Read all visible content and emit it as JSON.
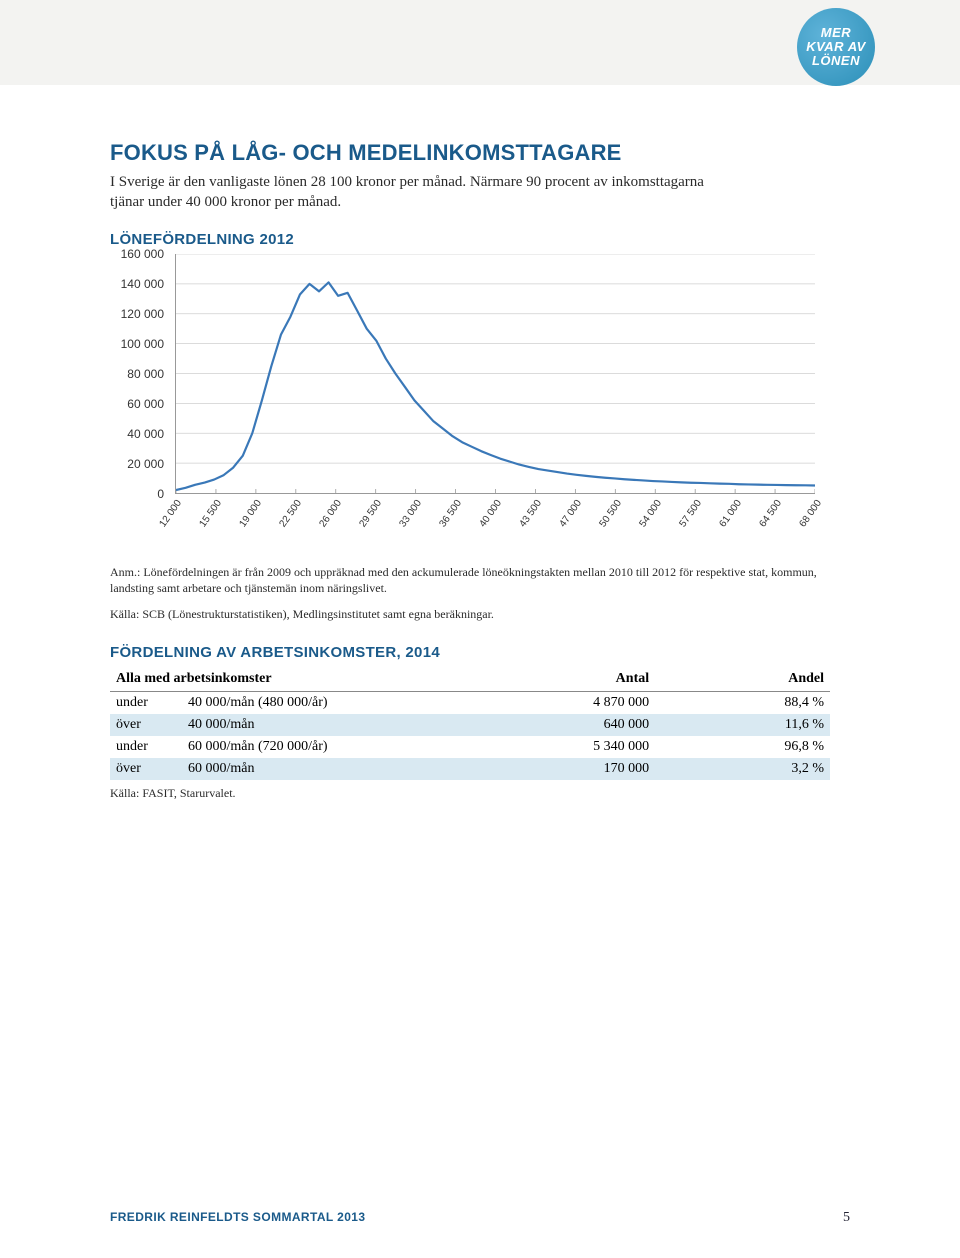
{
  "badge": {
    "line1": "MER",
    "line2": "KVAR AV",
    "line3": "LÖNEN"
  },
  "heading": "FOKUS PÅ LÅG- OCH MEDELINKOMSTTAGARE",
  "intro": "I Sverige är den vanligaste lönen 28 100 kronor per månad. Närmare 90 procent av inkomsttagarna tjänar under 40 000 kronor per månad.",
  "chart": {
    "title": "LÖNEFÖRDELNING 2012",
    "type": "line",
    "y_ticks": [
      0,
      20000,
      40000,
      60000,
      80000,
      100000,
      120000,
      140000,
      160000
    ],
    "y_labels": [
      "0",
      "20 000",
      "40 000",
      "60 000",
      "80 000",
      "100 000",
      "120 000",
      "140 000",
      "160 000"
    ],
    "ylim": [
      0,
      160000
    ],
    "x_labels": [
      "12 000",
      "15 500",
      "19 000",
      "22 500",
      "26 000",
      "29 500",
      "33 000",
      "36 500",
      "40 000",
      "43 500",
      "47 000",
      "50 500",
      "54 000",
      "57 500",
      "61 000",
      "64 500",
      "68 000"
    ],
    "series": {
      "color": "#3a78b8",
      "stroke_width": 2.2,
      "points": [
        [
          0,
          2000
        ],
        [
          1,
          3500
        ],
        [
          2,
          5500
        ],
        [
          3,
          7000
        ],
        [
          4,
          9000
        ],
        [
          5,
          12000
        ],
        [
          6,
          17000
        ],
        [
          7,
          25000
        ],
        [
          8,
          40000
        ],
        [
          9,
          62000
        ],
        [
          10,
          85000
        ],
        [
          11,
          106000
        ],
        [
          12,
          118000
        ],
        [
          13,
          133000
        ],
        [
          14,
          140000
        ],
        [
          15,
          135000
        ],
        [
          16,
          141000
        ],
        [
          17,
          132000
        ],
        [
          18,
          134000
        ],
        [
          19,
          122000
        ],
        [
          20,
          110000
        ],
        [
          21,
          102000
        ],
        [
          22,
          90000
        ],
        [
          23,
          80000
        ],
        [
          24,
          71000
        ],
        [
          25,
          62000
        ],
        [
          26,
          55000
        ],
        [
          27,
          48000
        ],
        [
          28,
          43000
        ],
        [
          29,
          38000
        ],
        [
          30,
          34000
        ],
        [
          31,
          31000
        ],
        [
          32,
          28000
        ],
        [
          33,
          25500
        ],
        [
          34,
          23000
        ],
        [
          35,
          21000
        ],
        [
          36,
          19000
        ],
        [
          37,
          17500
        ],
        [
          38,
          16000
        ],
        [
          39,
          15000
        ],
        [
          40,
          14000
        ],
        [
          41,
          13000
        ],
        [
          42,
          12200
        ],
        [
          43,
          11500
        ],
        [
          44,
          10800
        ],
        [
          45,
          10200
        ],
        [
          46,
          9700
        ],
        [
          47,
          9200
        ],
        [
          48,
          8800
        ],
        [
          49,
          8400
        ],
        [
          50,
          8000
        ],
        [
          51,
          7700
        ],
        [
          52,
          7400
        ],
        [
          53,
          7100
        ],
        [
          54,
          6900
        ],
        [
          55,
          6700
        ],
        [
          56,
          6500
        ],
        [
          57,
          6300
        ],
        [
          58,
          6100
        ],
        [
          59,
          5900
        ],
        [
          60,
          5700
        ],
        [
          61,
          5600
        ],
        [
          62,
          5500
        ],
        [
          63,
          5400
        ],
        [
          64,
          5300
        ],
        [
          65,
          5200
        ],
        [
          66,
          5100
        ],
        [
          67,
          5000
        ]
      ],
      "x_index_max": 67
    },
    "grid_color": "#cfcfcf",
    "background": "#ffffff",
    "axis_fontsize": 12,
    "x_fontsize": 10
  },
  "footnote": "Anm.: Lönefördelningen är från 2009 och uppräknad med den ackumulerade löneökningstakten mellan 2010 till 2012 för respektive stat, kommun, landsting samt arbetare och tjänstemän inom näringslivet.",
  "source1": "Källa: SCB (Lönestrukturstatistiken), Medlingsinstitutet samt egna beräkningar.",
  "table_title": "FÖRDELNING AV ARBETSINKOMSTER, 2014",
  "table": {
    "headers": [
      "Alla med arbetsinkomster",
      "Antal",
      "Andel"
    ],
    "rows": [
      {
        "lbl": "under",
        "desc": "40 000/mån (480 000/år)",
        "antal": "4 870 000",
        "andel": "88,4 %",
        "stripe": false
      },
      {
        "lbl": "över",
        "desc": "40 000/mån",
        "antal": "640 000",
        "andel": "11,6 %",
        "stripe": true
      },
      {
        "lbl": "under",
        "desc": "60 000/mån (720 000/år)",
        "antal": "5 340 000",
        "andel": "96,8 %",
        "stripe": false
      },
      {
        "lbl": "över",
        "desc": "60 000/mån",
        "antal": "170 000",
        "andel": "3,2 %",
        "stripe": true
      }
    ]
  },
  "source2": "Källa: FASIT, Starurvalet.",
  "footer": {
    "left": "FREDRIK REINFELDTS SOMMARTAL 2013",
    "page": "5"
  }
}
